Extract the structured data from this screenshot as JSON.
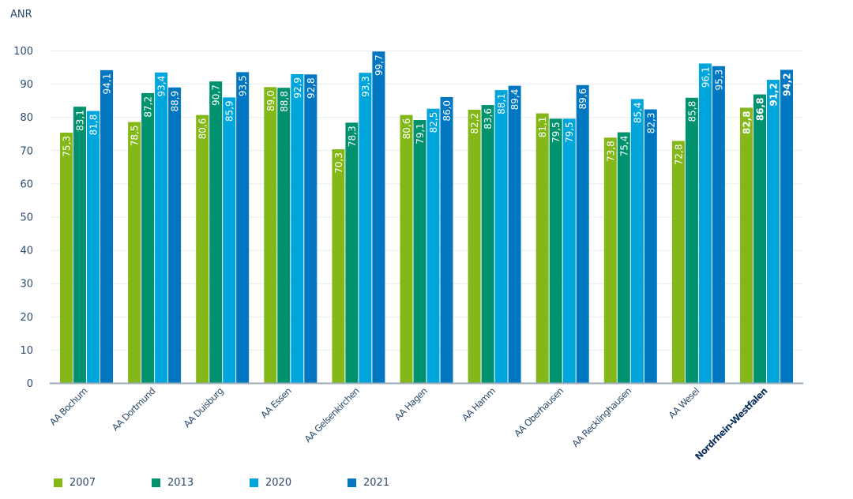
{
  "chart_data": {
    "type": "bar",
    "ylabel": "ANR",
    "ylim": [
      0,
      100
    ],
    "yticks": [
      0,
      10,
      20,
      30,
      40,
      50,
      60,
      70,
      80,
      90,
      100
    ],
    "grid": true,
    "legend_position": "bottom-left",
    "categories": [
      "AA Bochum",
      "AA Dortmund",
      "AA Duisburg",
      "AA Essen",
      "AA Gelsenkirchen",
      "AA Hagen",
      "AA Hamm",
      "AA Oberhausen",
      "AA Recklinghausen",
      "AA Wesel",
      "Nordrhein-Westfalen"
    ],
    "highlight_category": "Nordrhein-Westfalen",
    "series": [
      {
        "name": "2007",
        "color": "#84b819",
        "values": [
          75.3,
          78.5,
          80.6,
          89.0,
          70.3,
          80.6,
          82.2,
          81.1,
          73.8,
          72.8,
          82.8
        ],
        "labels": [
          "75,3",
          "78,5",
          "80,6",
          "89,0",
          "70,3",
          "80,6",
          "82,2",
          "81,1",
          "73,8",
          "72,8",
          "82,8"
        ]
      },
      {
        "name": "2013",
        "color": "#00916e",
        "values": [
          83.1,
          87.2,
          90.7,
          88.8,
          78.3,
          79.1,
          83.6,
          79.5,
          75.4,
          85.8,
          86.8
        ],
        "labels": [
          "83,1",
          "87,2",
          "90,7",
          "88,8",
          "78,3",
          "79,1",
          "83,6",
          "79,5",
          "75,4",
          "85,8",
          "86,8"
        ]
      },
      {
        "name": "2020",
        "color": "#00a5dc",
        "values": [
          81.8,
          93.4,
          85.9,
          92.9,
          93.3,
          82.5,
          88.1,
          79.5,
          85.4,
          96.1,
          91.2
        ],
        "labels": [
          "81,8",
          "93,4",
          "85,9",
          "92,9",
          "93,3",
          "82,5",
          "88,1",
          "79,5",
          "85,4",
          "96,1",
          "91,2"
        ]
      },
      {
        "name": "2021",
        "color": "#0077c0",
        "values": [
          94.1,
          88.9,
          93.5,
          92.8,
          99.7,
          86.0,
          89.4,
          89.6,
          82.3,
          95.3,
          94.2
        ],
        "labels": [
          "94,1",
          "88,9",
          "93,5",
          "92,8",
          "99,7",
          "86,0",
          "89,4",
          "89,6",
          "82,3",
          "95,3",
          "94,2"
        ]
      }
    ]
  }
}
